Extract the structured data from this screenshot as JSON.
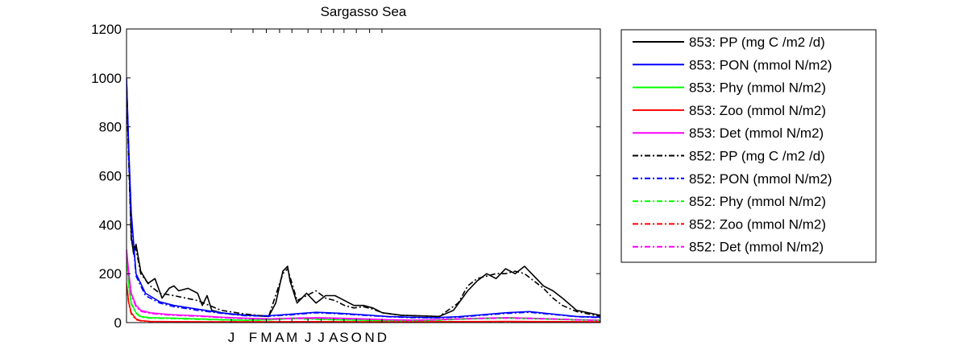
{
  "chart_data": {
    "type": "line",
    "title": "Sargasso Sea",
    "xlabel": "",
    "ylabel": "",
    "ylim": [
      0,
      1200
    ],
    "yticks": [
      0,
      200,
      400,
      600,
      800,
      1000,
      1200
    ],
    "xlim": [
      0,
      1
    ],
    "month_labels": [
      {
        "label": "J",
        "x": 0.221
      },
      {
        "label": "F",
        "x": 0.267
      },
      {
        "label": "M",
        "x": 0.295
      },
      {
        "label": "A",
        "x": 0.323
      },
      {
        "label": "M",
        "x": 0.349
      },
      {
        "label": "J",
        "x": 0.383
      },
      {
        "label": "J",
        "x": 0.411
      },
      {
        "label": "A",
        "x": 0.437
      },
      {
        "label": "S",
        "x": 0.459
      },
      {
        "label": "O",
        "x": 0.485
      },
      {
        "label": "N",
        "x": 0.513
      },
      {
        "label": "D",
        "x": 0.539
      }
    ],
    "legend_position": "outside-right",
    "grid": false,
    "series": [
      {
        "name": "853: PP (mg C /m2 /d)",
        "color": "#000000",
        "dash": "solid",
        "x": [
          0.0,
          0.01,
          0.015,
          0.02,
          0.03,
          0.045,
          0.06,
          0.075,
          0.09,
          0.1,
          0.11,
          0.13,
          0.15,
          0.16,
          0.17,
          0.18,
          0.2,
          0.22,
          0.26,
          0.3,
          0.315,
          0.33,
          0.34,
          0.345,
          0.36,
          0.38,
          0.4,
          0.42,
          0.44,
          0.46,
          0.48,
          0.5,
          0.52,
          0.54,
          0.58,
          0.66,
          0.69,
          0.72,
          0.74,
          0.76,
          0.78,
          0.8,
          0.82,
          0.84,
          0.86,
          0.88,
          0.9,
          0.92,
          0.95,
          1.0
        ],
        "values": [
          1000,
          350,
          280,
          320,
          210,
          160,
          180,
          100,
          140,
          150,
          130,
          140,
          120,
          70,
          110,
          50,
          40,
          35,
          30,
          25,
          80,
          210,
          230,
          170,
          80,
          120,
          80,
          110,
          110,
          90,
          70,
          70,
          60,
          40,
          30,
          25,
          50,
          130,
          170,
          200,
          180,
          220,
          200,
          230,
          190,
          150,
          130,
          100,
          50,
          30
        ]
      },
      {
        "name": "853: PON (mmol N/m2)",
        "color": "#0000ff",
        "dash": "solid",
        "x": [
          0.0,
          0.005,
          0.01,
          0.02,
          0.04,
          0.07,
          0.1,
          0.15,
          0.2,
          0.25,
          0.3,
          0.35,
          0.4,
          0.45,
          0.5,
          0.55,
          0.6,
          0.65,
          0.7,
          0.75,
          0.8,
          0.85,
          0.9,
          0.95,
          1.0
        ],
        "values": [
          1000,
          700,
          450,
          200,
          120,
          85,
          70,
          55,
          40,
          30,
          28,
          35,
          42,
          38,
          32,
          25,
          22,
          20,
          24,
          32,
          40,
          45,
          35,
          25,
          22
        ]
      },
      {
        "name": "853: Phy (mmol N/m2)",
        "color": "#00ff00",
        "dash": "solid",
        "x": [
          0.0,
          0.005,
          0.01,
          0.02,
          0.03,
          0.05,
          0.1,
          0.15,
          0.2,
          0.25,
          0.3,
          0.35,
          0.4,
          0.45,
          0.5,
          0.55,
          0.6,
          0.65,
          0.7,
          0.75,
          0.8,
          0.85,
          0.9,
          0.95,
          1.0
        ],
        "values": [
          300,
          150,
          80,
          40,
          25,
          20,
          18,
          15,
          12,
          10,
          12,
          18,
          15,
          12,
          10,
          8,
          8,
          10,
          15,
          18,
          20,
          18,
          15,
          12,
          10
        ]
      },
      {
        "name": "853: Zoo (mmol N/m2)",
        "color": "#ff0000",
        "dash": "solid",
        "x": [
          0.0,
          0.005,
          0.01,
          0.02,
          0.03,
          0.05,
          0.1,
          0.2,
          0.3,
          0.4,
          0.5,
          0.6,
          0.7,
          0.8,
          0.9,
          1.0
        ],
        "values": [
          160,
          80,
          40,
          15,
          8,
          5,
          4,
          3,
          3,
          4,
          3,
          3,
          4,
          5,
          4,
          3
        ]
      },
      {
        "name": "853: Det (mmol N/m2)",
        "color": "#ff00ff",
        "dash": "solid",
        "x": [
          0.0,
          0.005,
          0.01,
          0.02,
          0.03,
          0.05,
          0.08,
          0.1,
          0.15,
          0.2,
          0.25,
          0.3,
          0.35,
          0.4,
          0.45,
          0.5,
          0.55,
          0.6,
          0.65,
          0.7,
          0.75,
          0.8,
          0.85,
          0.9,
          0.95,
          1.0
        ],
        "values": [
          300,
          200,
          120,
          70,
          50,
          40,
          35,
          32,
          28,
          22,
          18,
          15,
          18,
          20,
          18,
          15,
          12,
          10,
          12,
          15,
          18,
          20,
          18,
          15,
          12,
          10
        ]
      },
      {
        "name": "852: PP (mg C /m2 /d)",
        "color": "#000000",
        "dash": "dashdot",
        "x": [
          0.0,
          0.01,
          0.02,
          0.03,
          0.05,
          0.07,
          0.1,
          0.15,
          0.2,
          0.25,
          0.3,
          0.33,
          0.34,
          0.36,
          0.38,
          0.4,
          0.42,
          0.44,
          0.46,
          0.48,
          0.5,
          0.52,
          0.54,
          0.58,
          0.66,
          0.7,
          0.72,
          0.74,
          0.76,
          0.78,
          0.8,
          0.82,
          0.84,
          0.86,
          0.88,
          0.9,
          0.92,
          0.95,
          1.0
        ],
        "values": [
          950,
          330,
          300,
          200,
          150,
          120,
          110,
          90,
          50,
          35,
          25,
          200,
          220,
          90,
          110,
          130,
          100,
          90,
          70,
          60,
          65,
          55,
          40,
          30,
          25,
          80,
          150,
          180,
          190,
          200,
          200,
          210,
          200,
          170,
          140,
          100,
          70,
          45,
          25
        ]
      },
      {
        "name": "852: PON (mmol N/m2)",
        "color": "#0000ff",
        "dash": "dashdot",
        "x": [
          0.0,
          0.005,
          0.01,
          0.02,
          0.04,
          0.07,
          0.1,
          0.15,
          0.2,
          0.25,
          0.3,
          0.35,
          0.4,
          0.45,
          0.5,
          0.55,
          0.6,
          0.65,
          0.7,
          0.75,
          0.8,
          0.85,
          0.9,
          0.95,
          1.0
        ],
        "values": [
          980,
          650,
          420,
          190,
          110,
          80,
          65,
          50,
          38,
          28,
          26,
          32,
          40,
          36,
          30,
          24,
          20,
          19,
          22,
          30,
          37,
          42,
          33,
          24,
          20
        ]
      },
      {
        "name": "852: Phy (mmol N/m2)",
        "color": "#00ff00",
        "dash": "dashdot",
        "x": [
          0.0,
          0.005,
          0.01,
          0.02,
          0.03,
          0.05,
          0.1,
          0.15,
          0.2,
          0.25,
          0.3,
          0.35,
          0.4,
          0.45,
          0.5,
          0.55,
          0.6,
          0.65,
          0.7,
          0.75,
          0.8,
          0.85,
          0.9,
          0.95,
          1.0
        ],
        "values": [
          280,
          140,
          75,
          38,
          22,
          18,
          16,
          13,
          11,
          9,
          11,
          16,
          13,
          11,
          9,
          7,
          7,
          9,
          13,
          16,
          18,
          16,
          13,
          11,
          9
        ]
      },
      {
        "name": "852: Zoo (mmol N/m2)",
        "color": "#ff0000",
        "dash": "dashdot",
        "x": [
          0.0,
          0.005,
          0.01,
          0.02,
          0.03,
          0.05,
          0.1,
          0.2,
          0.3,
          0.4,
          0.5,
          0.6,
          0.7,
          0.8,
          0.9,
          1.0
        ],
        "values": [
          150,
          75,
          35,
          12,
          7,
          4,
          3,
          3,
          3,
          3,
          3,
          3,
          3,
          4,
          3,
          3
        ]
      },
      {
        "name": "852: Det (mmol N/m2)",
        "color": "#ff00ff",
        "dash": "dashdot",
        "x": [
          0.0,
          0.005,
          0.01,
          0.02,
          0.03,
          0.05,
          0.08,
          0.1,
          0.15,
          0.2,
          0.25,
          0.3,
          0.35,
          0.4,
          0.45,
          0.5,
          0.55,
          0.6,
          0.65,
          0.7,
          0.75,
          0.8,
          0.85,
          0.9,
          0.95,
          1.0
        ],
        "values": [
          280,
          190,
          110,
          65,
          46,
          37,
          32,
          30,
          26,
          20,
          16,
          14,
          16,
          18,
          16,
          14,
          11,
          9,
          11,
          14,
          16,
          18,
          16,
          14,
          11,
          9
        ]
      }
    ]
  }
}
